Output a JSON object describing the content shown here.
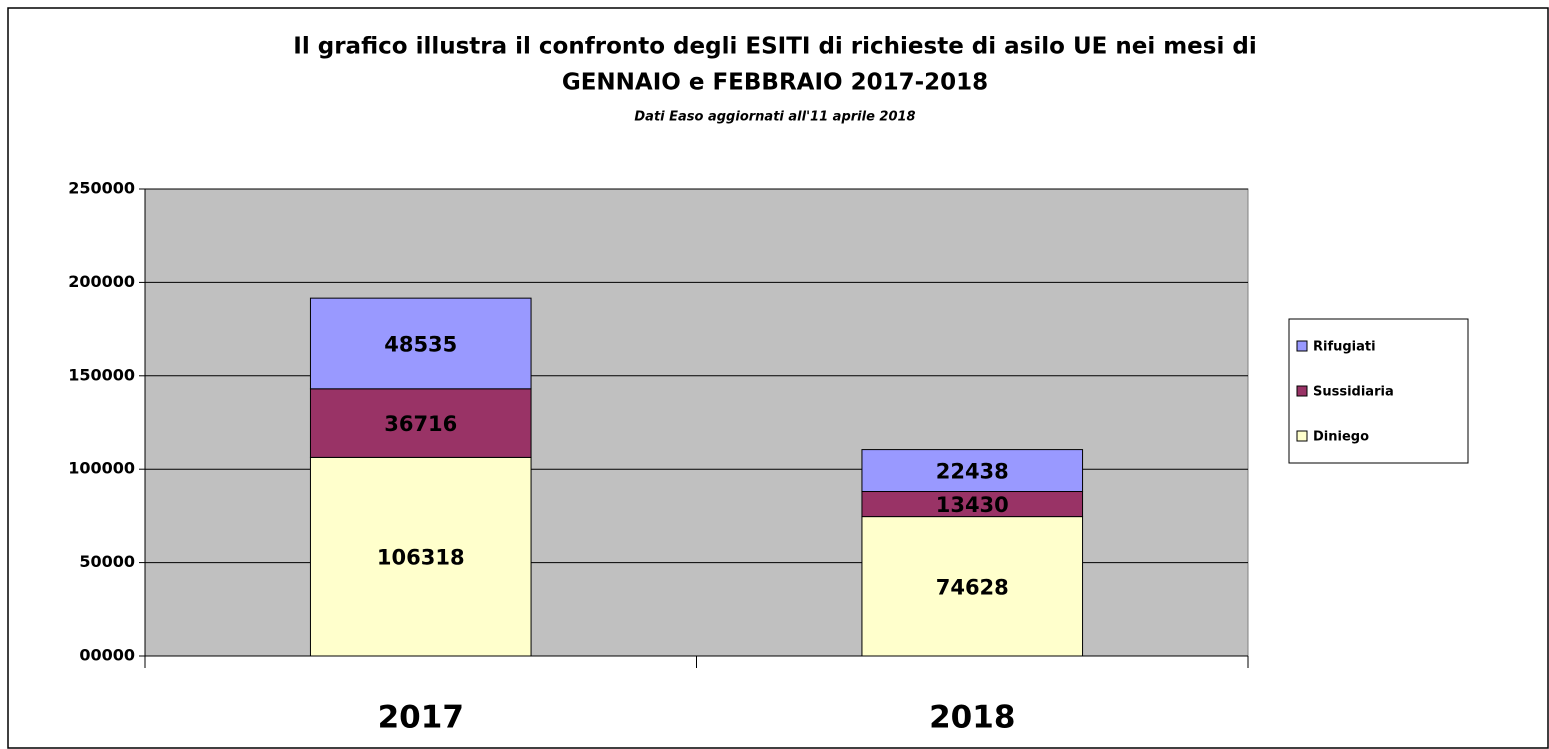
{
  "chart_data": {
    "type": "stacked_bar",
    "title": [
      "Il grafico illustra il confronto degli ESITI di richieste di asilo UE nei mesi di",
      "GENNAIO e FEBBRAIO 2017-2018"
    ],
    "subtitle": "Dati Easo aggiornati all'11 aprile 2018",
    "categories": [
      "2017",
      "2018"
    ],
    "series": [
      {
        "name": "Diniego",
        "color": "#ffffcc",
        "values": [
          106318,
          74628
        ]
      },
      {
        "name": "Sussidiaria",
        "color": "#993366",
        "values": [
          36716,
          13430
        ]
      },
      {
        "name": "Rifugiati",
        "color": "#9999ff",
        "values": [
          48535,
          22438
        ]
      }
    ],
    "ylim": [
      0,
      250000
    ],
    "yticks": [
      {
        "value": 0,
        "label": "00000"
      },
      50000,
      100000,
      150000,
      200000,
      250000
    ],
    "grid": true,
    "legend": "right",
    "plot_background": "#c0c0c0"
  }
}
